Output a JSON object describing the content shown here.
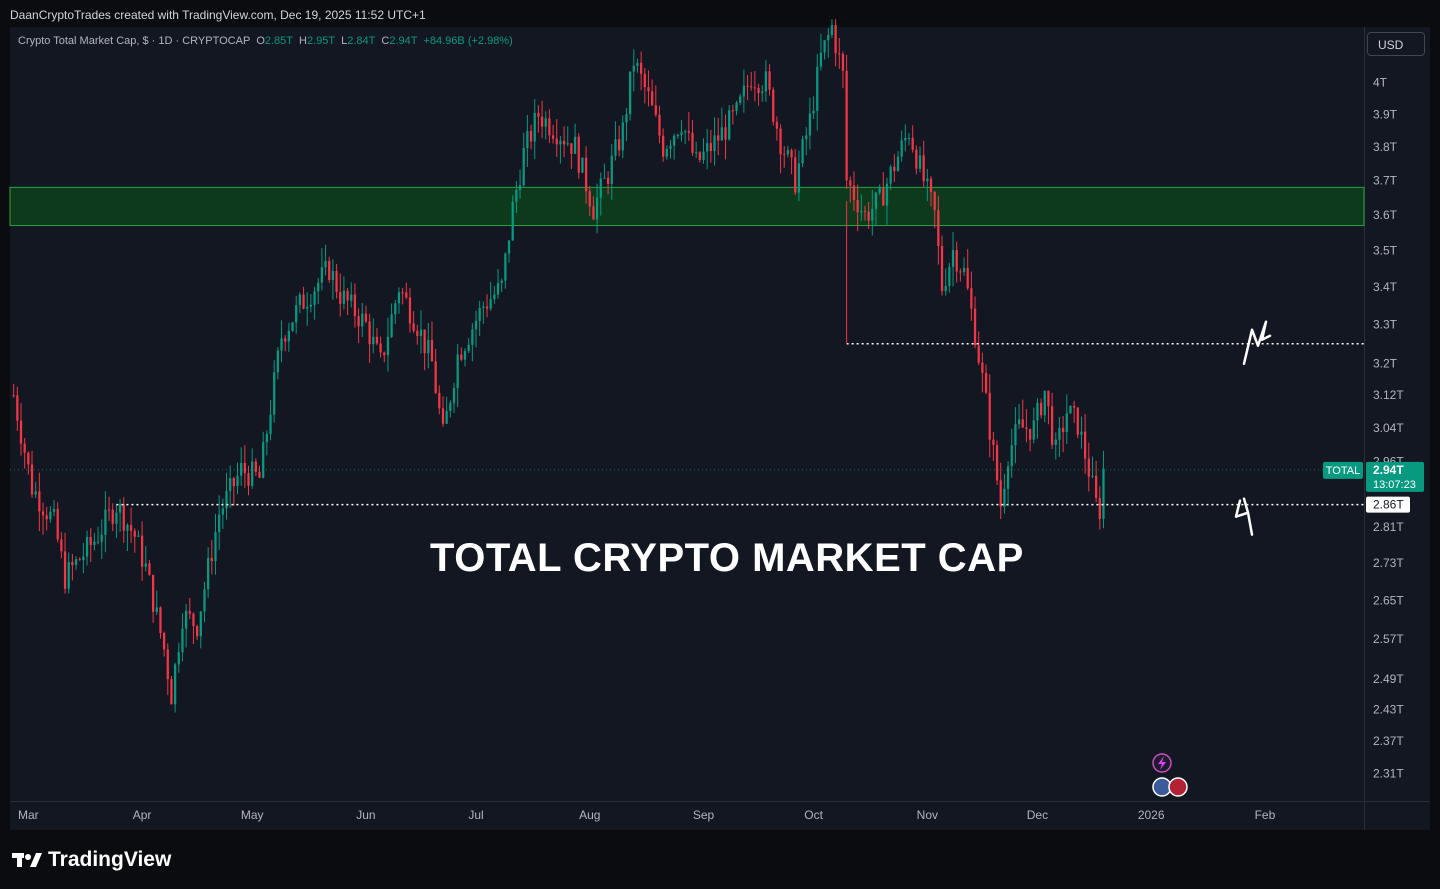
{
  "attribution": "DaanCryptoTrades created with TradingView.com, Dec 19, 2025 11:52 UTC+1",
  "header": {
    "symbol_title": "Crypto Total Market Cap, $ · 1D · CRYPTOCAP",
    "open_label": "O",
    "open": "2.85T",
    "high_label": "H",
    "high": "2.95T",
    "low_label": "L",
    "low": "2.84T",
    "close_label": "C",
    "close": "2.94T",
    "change": "+84.96B (+2.98%)"
  },
  "currency_button": "USD",
  "watermark": "TOTAL CRYPTO MARKET CAP",
  "brand": "TradingView",
  "price_badge": {
    "symbol": "TOTAL",
    "price": "2.94T",
    "countdown": "13:07:23"
  },
  "level_badge": "2.86T",
  "colors": {
    "background": "#131722",
    "up": "#089981",
    "down": "#f23645",
    "zone_fill": "#0d3a1c",
    "zone_border": "#2ea043",
    "dotted_line": "#ffffff",
    "axis_text": "#b2b5be",
    "badge": "#089981"
  },
  "chart_data": {
    "type": "candlestick",
    "title": "Crypto Total Market Cap, $ · 1D · CRYPTOCAP",
    "y_scale": "log",
    "y_ticks": [
      "4T",
      "3.9T",
      "3.8T",
      "3.7T",
      "3.6T",
      "3.5T",
      "3.4T",
      "3.3T",
      "3.2T",
      "3.12T",
      "3.04T",
      "2.96T",
      "2.81T",
      "2.73T",
      "2.65T",
      "2.57T",
      "2.49T",
      "2.43T",
      "2.37T",
      "2.31T"
    ],
    "y_tick_values": [
      4.0,
      3.9,
      3.8,
      3.7,
      3.6,
      3.5,
      3.4,
      3.3,
      3.2,
      3.12,
      3.04,
      2.96,
      2.81,
      2.73,
      2.65,
      2.57,
      2.49,
      2.43,
      2.37,
      2.31
    ],
    "x_ticks": [
      "Mar",
      "Apr",
      "May",
      "Jun",
      "Jul",
      "Aug",
      "Sep",
      "Oct",
      "Nov",
      "Dec",
      "2026",
      "Feb"
    ],
    "x_tick_dates": [
      "2025-03-01",
      "2025-04-01",
      "2025-05-01",
      "2025-06-01",
      "2025-07-01",
      "2025-08-01",
      "2025-09-01",
      "2025-10-01",
      "2025-11-01",
      "2025-12-01",
      "2026-01-01",
      "2026-02-01"
    ],
    "x_range": [
      "2025-02-24",
      "2026-02-28"
    ],
    "y_range": [
      2.26,
      4.18
    ],
    "close_series": [
      [
        "2025-02-25",
        3.12
      ],
      [
        "2025-03-02",
        2.9
      ],
      [
        "2025-03-08",
        2.82
      ],
      [
        "2025-03-11",
        2.7
      ],
      [
        "2025-03-19",
        2.78
      ],
      [
        "2025-03-25",
        2.86
      ],
      [
        "2025-03-30",
        2.79
      ],
      [
        "2025-04-02",
        2.72
      ],
      [
        "2025-04-07",
        2.55
      ],
      [
        "2025-04-09",
        2.46
      ],
      [
        "2025-04-12",
        2.62
      ],
      [
        "2025-04-16",
        2.6
      ],
      [
        "2025-04-22",
        2.84
      ],
      [
        "2025-04-28",
        2.94
      ],
      [
        "2025-05-03",
        2.92
      ],
      [
        "2025-05-09",
        3.27
      ],
      [
        "2025-05-14",
        3.35
      ],
      [
        "2025-05-22",
        3.45
      ],
      [
        "2025-05-25",
        3.38
      ],
      [
        "2025-06-01",
        3.3
      ],
      [
        "2025-06-05",
        3.2
      ],
      [
        "2025-06-10",
        3.4
      ],
      [
        "2025-06-15",
        3.3
      ],
      [
        "2025-06-19",
        3.2
      ],
      [
        "2025-06-22",
        3.02
      ],
      [
        "2025-06-26",
        3.22
      ],
      [
        "2025-07-03",
        3.35
      ],
      [
        "2025-07-08",
        3.4
      ],
      [
        "2025-07-11",
        3.62
      ],
      [
        "2025-07-14",
        3.78
      ],
      [
        "2025-07-18",
        3.9
      ],
      [
        "2025-07-22",
        3.86
      ],
      [
        "2025-07-28",
        3.8
      ],
      [
        "2025-08-02",
        3.62
      ],
      [
        "2025-08-06",
        3.72
      ],
      [
        "2025-08-10",
        3.85
      ],
      [
        "2025-08-13",
        4.07
      ],
      [
        "2025-08-17",
        3.95
      ],
      [
        "2025-08-21",
        3.8
      ],
      [
        "2025-08-26",
        3.88
      ],
      [
        "2025-08-30",
        3.75
      ],
      [
        "2025-09-03",
        3.8
      ],
      [
        "2025-09-10",
        3.9
      ],
      [
        "2025-09-14",
        4.02
      ],
      [
        "2025-09-18",
        4.0
      ],
      [
        "2025-09-22",
        3.82
      ],
      [
        "2025-09-26",
        3.7
      ],
      [
        "2025-09-30",
        3.88
      ],
      [
        "2025-10-03",
        4.08
      ],
      [
        "2025-10-06",
        4.18
      ],
      [
        "2025-10-09",
        4.02
      ],
      [
        "2025-10-10",
        3.7
      ],
      [
        "2025-10-15",
        3.6
      ],
      [
        "2025-10-19",
        3.64
      ],
      [
        "2025-10-22",
        3.72
      ],
      [
        "2025-10-27",
        3.85
      ],
      [
        "2025-10-31",
        3.7
      ],
      [
        "2025-11-03",
        3.6
      ],
      [
        "2025-11-05",
        3.4
      ],
      [
        "2025-11-08",
        3.5
      ],
      [
        "2025-11-11",
        3.44
      ],
      [
        "2025-11-14",
        3.28
      ],
      [
        "2025-11-17",
        3.1
      ],
      [
        "2025-11-21",
        2.86
      ],
      [
        "2025-11-23",
        2.98
      ],
      [
        "2025-11-26",
        3.04
      ],
      [
        "2025-11-30",
        3.04
      ],
      [
        "2025-12-03",
        3.13
      ],
      [
        "2025-12-06",
        2.98
      ],
      [
        "2025-12-09",
        3.08
      ],
      [
        "2025-12-12",
        3.05
      ],
      [
        "2025-12-15",
        2.94
      ],
      [
        "2025-12-17",
        2.86
      ],
      [
        "2025-12-18",
        2.85
      ],
      [
        "2025-12-19",
        2.94
      ]
    ],
    "annotations": {
      "resistance_zone": [
        3.57,
        3.68
      ],
      "resistance_line": 3.25,
      "support_line": 2.86,
      "watermark": "TOTAL CRYPTO MARKET CAP"
    }
  }
}
